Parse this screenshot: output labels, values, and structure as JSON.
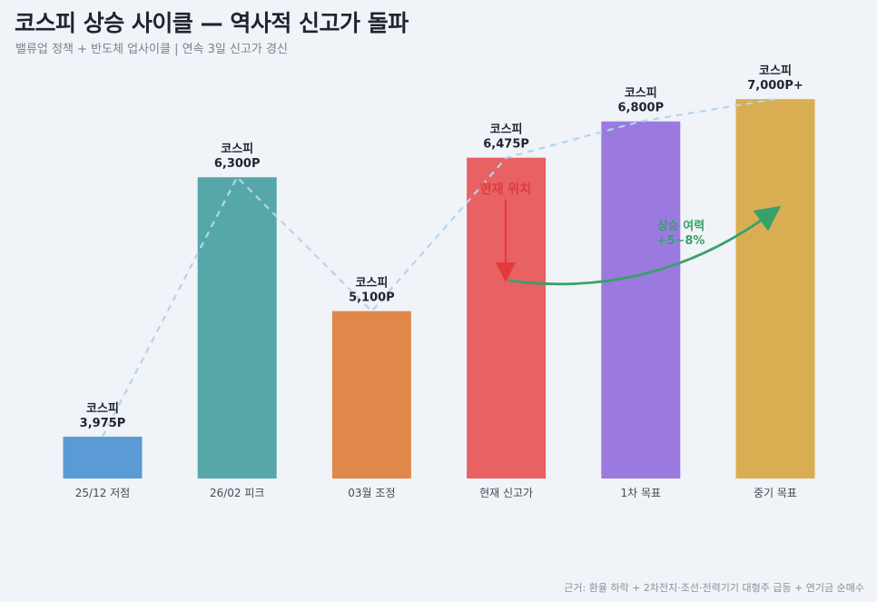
{
  "header": {
    "title": "코스피 상승 사이클 — 역사적 신고가 돌파",
    "subtitle": "밸류업 정책 + 반도체 업사이클  |  연속 3일 신고가 경신"
  },
  "footnote": "근거: 환율 하락 + 2차전지·조선·전력기기 대형주 급등 + 연기금 순매수",
  "annotations": {
    "current_position": "현재 위치",
    "upside_line1": "상승 여력",
    "upside_line2": "+5~8%"
  },
  "chart_data": {
    "type": "bar",
    "categories": [
      "25/12 저점",
      "26/02 피크",
      "03월 조정",
      "현재 신고가",
      "1차 목표",
      "중기 목표"
    ],
    "values": [
      3975,
      6300,
      5100,
      6475,
      6800,
      7000
    ],
    "data_labels": [
      [
        "코스피",
        "3,975P"
      ],
      [
        "코스피",
        "6,300P"
      ],
      [
        "코스피",
        "5,100P"
      ],
      [
        "코스피",
        "6,475P"
      ],
      [
        "코스피",
        "6,800P"
      ],
      [
        "코스피",
        "7,000P+"
      ]
    ],
    "colors": [
      "#5b9bd5",
      "#56a8a8",
      "#e0874a",
      "#e86163",
      "#9b7ae0",
      "#d9ae52"
    ],
    "trend_line_color": "#b5d4ee",
    "ylim": [
      3600,
      7400
    ],
    "grid": false,
    "legend": "none"
  }
}
